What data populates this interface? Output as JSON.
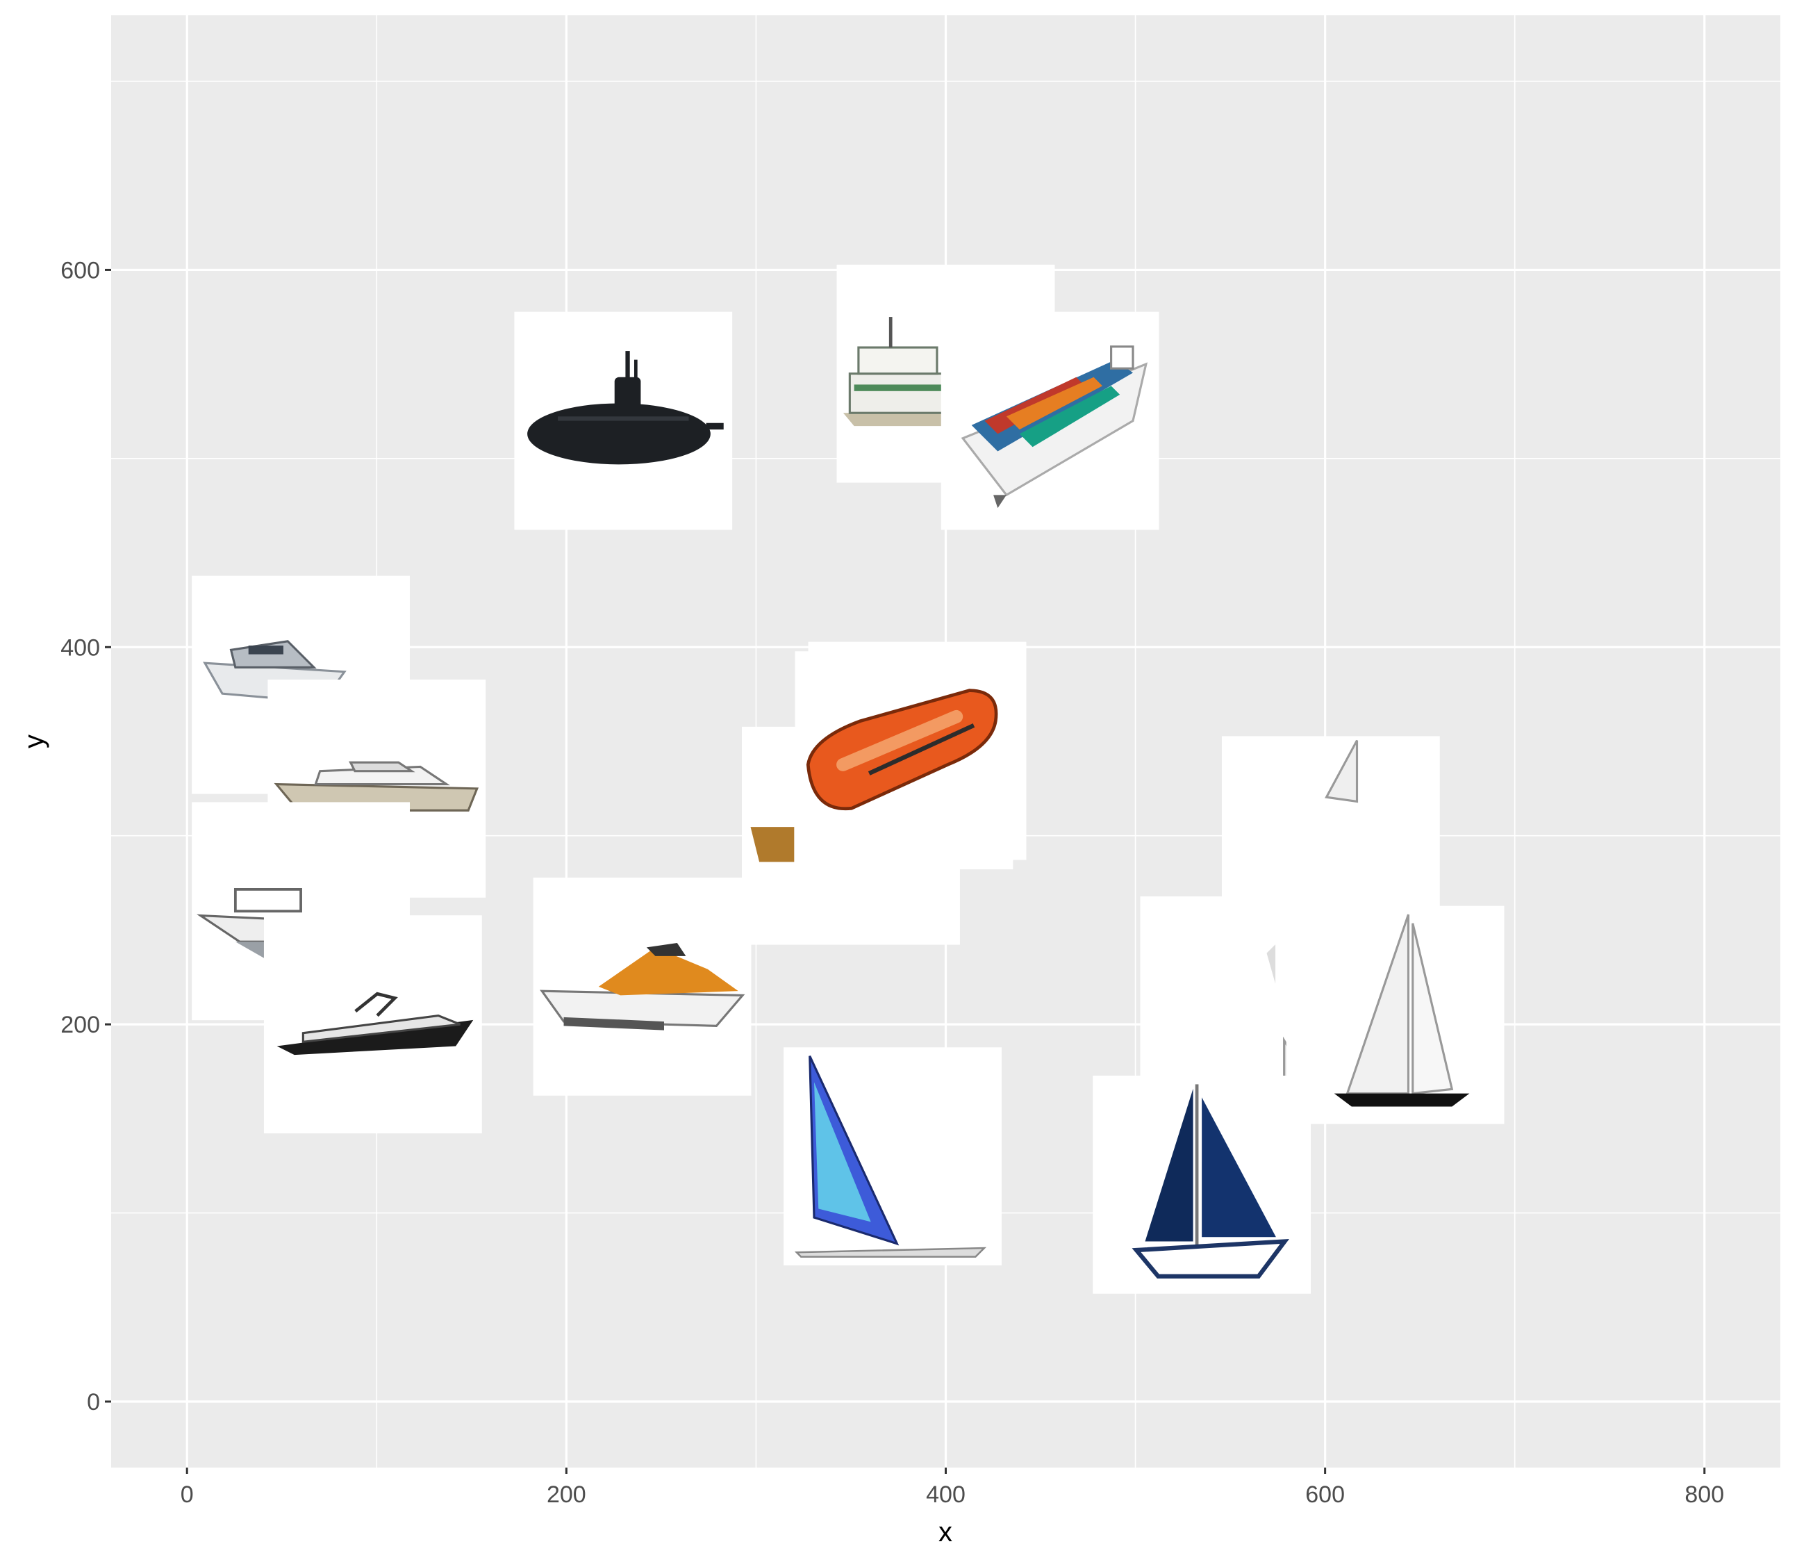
{
  "chart_data": {
    "type": "scatter",
    "title": "",
    "xlabel": "x",
    "ylabel": "y",
    "xlim": [
      -40,
      840
    ],
    "ylim": [
      -35,
      735
    ],
    "x_ticks": [
      "0",
      "200",
      "400",
      "600",
      "800"
    ],
    "x_tick_values": [
      0,
      200,
      400,
      600,
      800
    ],
    "y_ticks": [
      "0",
      "200",
      "400",
      "600"
    ],
    "y_tick_values": [
      0,
      200,
      400,
      600
    ],
    "grid": true,
    "legend": "none",
    "marker": "boat-image",
    "points": [
      {
        "x": 230,
        "y": 520,
        "icon": "submarine-icon"
      },
      {
        "x": 400,
        "y": 545,
        "icon": "ferry-icon"
      },
      {
        "x": 455,
        "y": 520,
        "icon": "container-ship-icon"
      },
      {
        "x": 60,
        "y": 380,
        "icon": "yacht-icon"
      },
      {
        "x": 100,
        "y": 325,
        "icon": "motor-yacht-icon"
      },
      {
        "x": 60,
        "y": 260,
        "icon": "fishing-boat-icon"
      },
      {
        "x": 98,
        "y": 200,
        "icon": "speedboat-icon"
      },
      {
        "x": 240,
        "y": 220,
        "icon": "jet-ski-icon"
      },
      {
        "x": 385,
        "y": 345,
        "icon": "kayak-icon"
      },
      {
        "x": 350,
        "y": 300,
        "icon": "rowboat-icon"
      },
      {
        "x": 378,
        "y": 340,
        "icon": "inflatable-raft-icon"
      },
      {
        "x": 372,
        "y": 130,
        "icon": "windsurf-icon"
      },
      {
        "x": 603,
        "y": 295,
        "icon": "small-sailboat-icon"
      },
      {
        "x": 560,
        "y": 210,
        "icon": "sailboat-icon"
      },
      {
        "x": 637,
        "y": 205,
        "icon": "racing-sailboat-icon"
      },
      {
        "x": 535,
        "y": 115,
        "icon": "blue-sailboat-icon"
      }
    ]
  }
}
